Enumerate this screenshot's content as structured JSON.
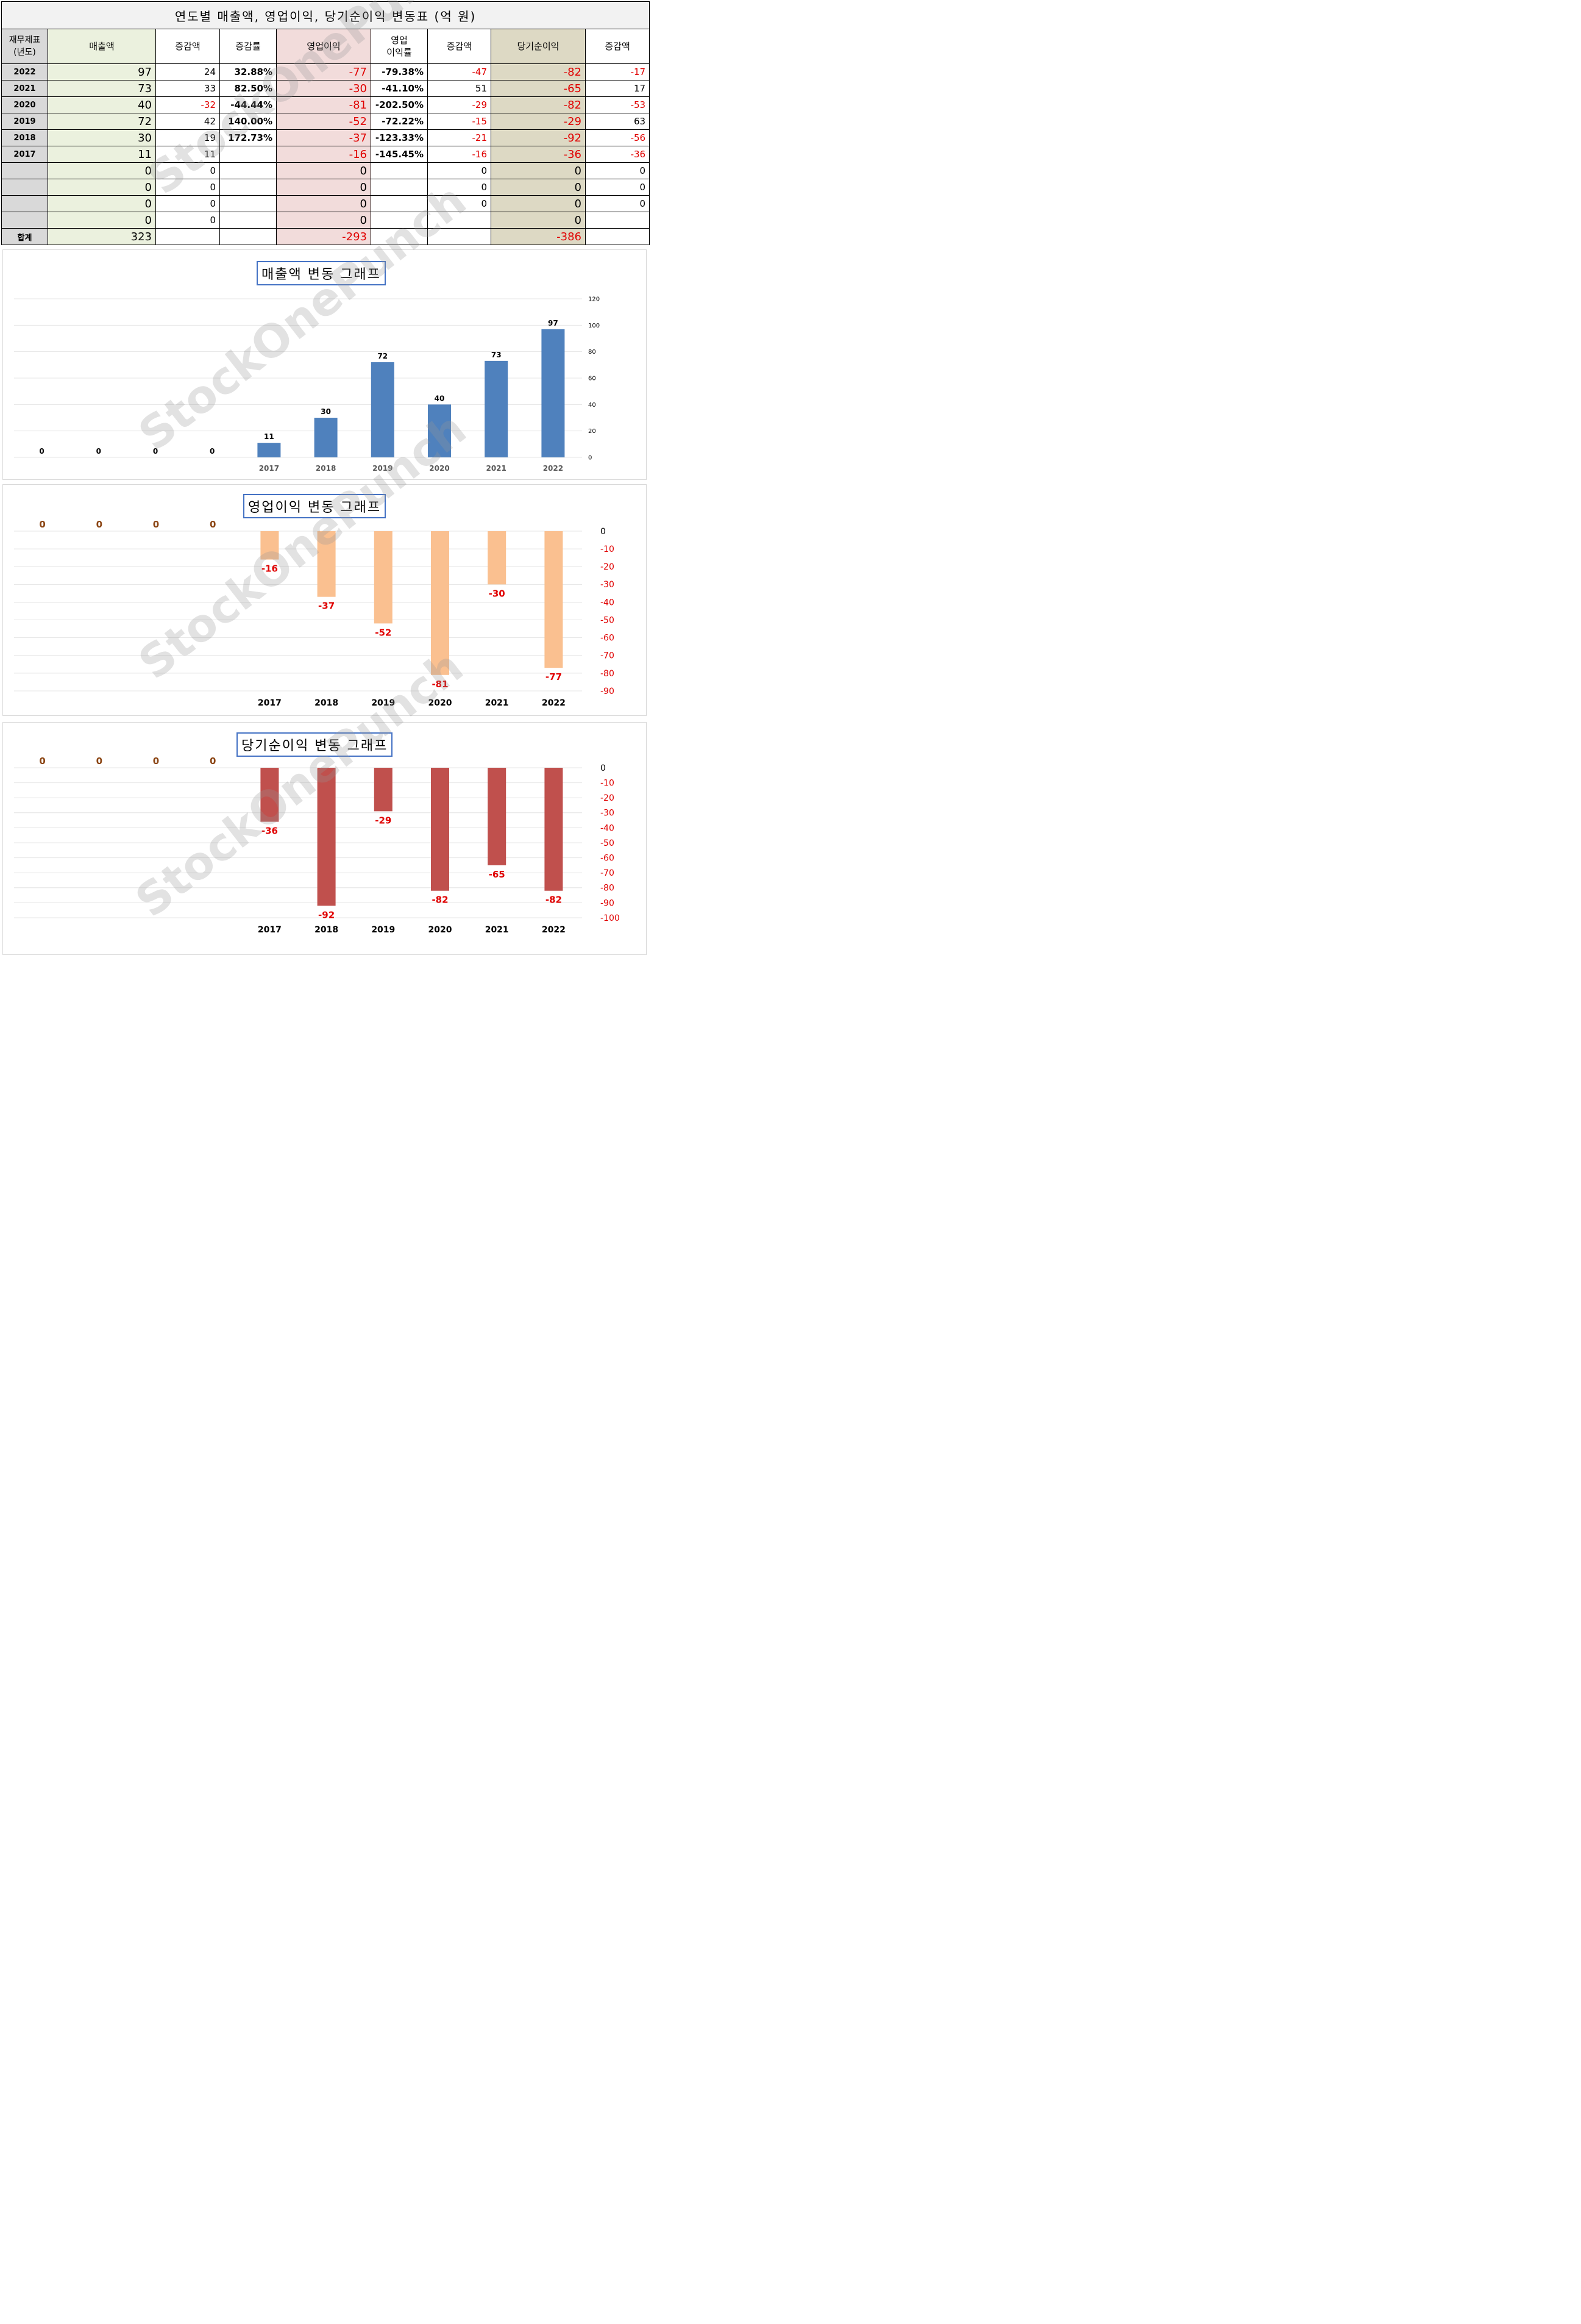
{
  "table": {
    "title": "연도별 매출액, 영업이익, 당기순이익 변동표   (억 원)",
    "headers": {
      "year": "재무제표\n(년도)",
      "revenue": "매출액",
      "rev_change": "증감액",
      "rev_rate": "증감률",
      "op": "영업이익",
      "op_margin": "영업\n이익률",
      "op_change": "증감액",
      "net": "당기순이익",
      "net_change": "증감액"
    },
    "rows": [
      {
        "year": "2022",
        "revenue": "97",
        "rev_change": "24",
        "rev_rate": "32.88%",
        "op": "-77",
        "op_margin": "-79.38%",
        "op_change": "-47",
        "net": "-82",
        "net_change": "-17"
      },
      {
        "year": "2021",
        "revenue": "73",
        "rev_change": "33",
        "rev_rate": "82.50%",
        "op": "-30",
        "op_margin": "-41.10%",
        "op_change": "51",
        "net": "-65",
        "net_change": "17"
      },
      {
        "year": "2020",
        "revenue": "40",
        "rev_change": "-32",
        "rev_rate": "-44.44%",
        "op": "-81",
        "op_margin": "-202.50%",
        "op_change": "-29",
        "net": "-82",
        "net_change": "-53"
      },
      {
        "year": "2019",
        "revenue": "72",
        "rev_change": "42",
        "rev_rate": "140.00%",
        "op": "-52",
        "op_margin": "-72.22%",
        "op_change": "-15",
        "net": "-29",
        "net_change": "63"
      },
      {
        "year": "2018",
        "revenue": "30",
        "rev_change": "19",
        "rev_rate": "172.73%",
        "op": "-37",
        "op_margin": "-123.33%",
        "op_change": "-21",
        "net": "-92",
        "net_change": "-56"
      },
      {
        "year": "2017",
        "revenue": "11",
        "rev_change": "11",
        "rev_rate": "",
        "op": "-16",
        "op_margin": "-145.45%",
        "op_change": "-16",
        "net": "-36",
        "net_change": "-36"
      },
      {
        "year": "",
        "revenue": "0",
        "rev_change": "0",
        "rev_rate": "",
        "op": "0",
        "op_margin": "",
        "op_change": "0",
        "net": "0",
        "net_change": "0"
      },
      {
        "year": "",
        "revenue": "0",
        "rev_change": "0",
        "rev_rate": "",
        "op": "0",
        "op_margin": "",
        "op_change": "0",
        "net": "0",
        "net_change": "0"
      },
      {
        "year": "",
        "revenue": "0",
        "rev_change": "0",
        "rev_rate": "",
        "op": "0",
        "op_margin": "",
        "op_change": "0",
        "net": "0",
        "net_change": "0"
      },
      {
        "year": "",
        "revenue": "0",
        "rev_change": "0",
        "rev_rate": "",
        "op": "0",
        "op_margin": "",
        "op_change": "",
        "net": "0",
        "net_change": ""
      }
    ],
    "total": {
      "label": "합계",
      "revenue": "323",
      "op": "-293",
      "net": "-386"
    }
  },
  "watermark": "StockOnePunch",
  "colors": {
    "revenue_bar": "#4f81bd",
    "op_bar": "#fac090",
    "net_bar": "#c0504d",
    "negative_text": "#e00000",
    "zero_label": "#8b4513"
  },
  "chart_data": [
    {
      "type": "bar",
      "title": "매출액 변동 그래프",
      "categories": [
        "",
        "",
        "",
        "",
        "2017",
        "2018",
        "2019",
        "2020",
        "2021",
        "2022"
      ],
      "values": [
        0,
        0,
        0,
        0,
        11,
        30,
        72,
        40,
        73,
        97
      ],
      "ylim": [
        0,
        120
      ],
      "yticks": [
        0,
        20,
        40,
        60,
        80,
        100,
        120
      ],
      "axis_side": "right",
      "grid": true
    },
    {
      "type": "bar",
      "title": "영업이익 변동 그래프",
      "categories": [
        "",
        "",
        "",
        "",
        "2017",
        "2018",
        "2019",
        "2020",
        "2021",
        "2022"
      ],
      "values": [
        0,
        0,
        0,
        0,
        -16,
        -37,
        -52,
        -81,
        -30,
        -77
      ],
      "ylim": [
        -90,
        0
      ],
      "yticks": [
        0,
        -10,
        -20,
        -30,
        -40,
        -50,
        -60,
        -70,
        -80,
        -90
      ],
      "axis_side": "right",
      "grid": true
    },
    {
      "type": "bar",
      "title": "당기순이익 변동 그래프",
      "categories": [
        "",
        "",
        "",
        "",
        "2017",
        "2018",
        "2019",
        "2020",
        "2021",
        "2022"
      ],
      "values": [
        0,
        0,
        0,
        0,
        -36,
        -92,
        -29,
        -82,
        -65,
        -82
      ],
      "ylim": [
        -100,
        0
      ],
      "yticks": [
        0,
        -10,
        -20,
        -30,
        -40,
        -50,
        -60,
        -70,
        -80,
        -90,
        -100
      ],
      "axis_side": "right",
      "grid": true
    }
  ]
}
